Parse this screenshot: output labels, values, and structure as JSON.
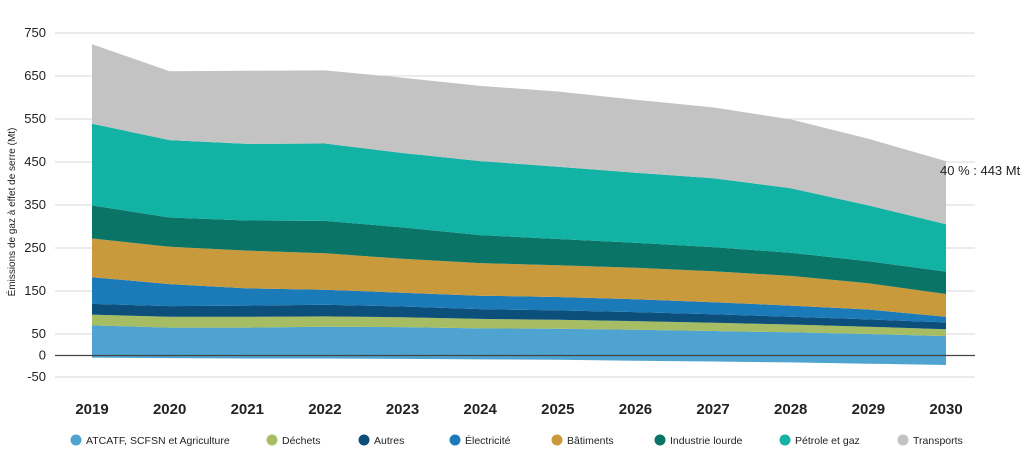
{
  "chart_data": {
    "type": "area",
    "stacked": true,
    "ylabel": "Émissions de gaz à effet de serre (Mt)",
    "xlabel": "",
    "x": [
      "2019",
      "2020",
      "2021",
      "2022",
      "2023",
      "2024",
      "2025",
      "2026",
      "2027",
      "2028",
      "2029",
      "2030"
    ],
    "ylim": [
      -50,
      750
    ],
    "yticks": [
      -50,
      0,
      50,
      150,
      250,
      350,
      450,
      550,
      650,
      750
    ],
    "grid": true,
    "legend_position": "bottom",
    "annotation": "40 % : 443 Mt",
    "series": [
      {
        "name": "ATCATF, SCFSN et Agriculture",
        "color": "#4ea3d0",
        "values": [
          70,
          65,
          65,
          67,
          66,
          63,
          62,
          60,
          57,
          54,
          50,
          45
        ],
        "negative": [
          -5,
          -6,
          -7,
          -7,
          -8,
          -9,
          -10,
          -12,
          -14,
          -16,
          -19,
          -22
        ]
      },
      {
        "name": "Déchets",
        "color": "#a6bd63",
        "values": [
          25,
          25,
          25,
          24,
          23,
          22,
          21,
          20,
          19,
          18,
          17,
          16
        ]
      },
      {
        "name": "Autres",
        "color": "#0b4f7a",
        "values": [
          25,
          25,
          26,
          27,
          25,
          23,
          22,
          21,
          20,
          18,
          17,
          16
        ]
      },
      {
        "name": "Électricité",
        "color": "#1b7ab8",
        "values": [
          62,
          51,
          40,
          35,
          32,
          31,
          31,
          30,
          28,
          26,
          23,
          13
        ]
      },
      {
        "name": "Bâtiments",
        "color": "#c99a3c",
        "values": [
          90,
          87,
          88,
          85,
          79,
          76,
          74,
          73,
          72,
          69,
          61,
          53
        ]
      },
      {
        "name": "Industrie lourde",
        "color": "#0a7466",
        "values": [
          77,
          68,
          70,
          75,
          73,
          65,
          61,
          58,
          56,
          54,
          51,
          52
        ]
      },
      {
        "name": "Pétrole et gaz",
        "color": "#12b2a5",
        "values": [
          190,
          180,
          178,
          180,
          173,
          172,
          168,
          163,
          160,
          150,
          130,
          110
        ]
      },
      {
        "name": "Transports",
        "color": "#c3c3c3",
        "values": [
          185,
          160,
          170,
          170,
          175,
          175,
          175,
          170,
          165,
          160,
          155,
          147
        ]
      }
    ]
  }
}
